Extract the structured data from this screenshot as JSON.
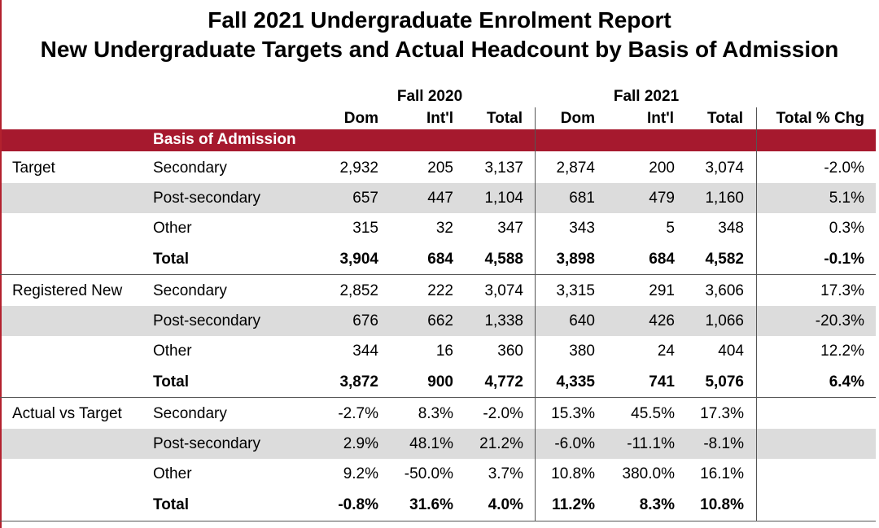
{
  "title_line1": "Fall 2021 Undergraduate Enrolment Report",
  "title_line2": "New Undergraduate Targets and Actual Headcount by Basis of Admission",
  "columns": {
    "fall2020": "Fall 2020",
    "fall2021": "Fall 2021",
    "dom": "Dom",
    "intl": "Int'l",
    "total": "Total",
    "total_pct_chg": "Total % Chg"
  },
  "basis_label": "Basis of Admission",
  "colors": {
    "band": "#a6192e",
    "shade": "#dcdcdc"
  },
  "groups": [
    {
      "label": "Target",
      "rows": [
        {
          "basis": "Secondary",
          "d20": "2,932",
          "i20": "205",
          "t20": "3,137",
          "d21": "2,874",
          "i21": "200",
          "t21": "3,074",
          "chg": "-2.0%"
        },
        {
          "basis": "Post-secondary",
          "d20": "657",
          "i20": "447",
          "t20": "1,104",
          "d21": "681",
          "i21": "479",
          "t21": "1,160",
          "chg": "5.1%"
        },
        {
          "basis": "Other",
          "d20": "315",
          "i20": "32",
          "t20": "347",
          "d21": "343",
          "i21": "5",
          "t21": "348",
          "chg": "0.3%"
        },
        {
          "basis": "Total",
          "d20": "3,904",
          "i20": "684",
          "t20": "4,588",
          "d21": "3,898",
          "i21": "684",
          "t21": "4,582",
          "chg": "-0.1%"
        }
      ]
    },
    {
      "label": "Registered New",
      "rows": [
        {
          "basis": "Secondary",
          "d20": "2,852",
          "i20": "222",
          "t20": "3,074",
          "d21": "3,315",
          "i21": "291",
          "t21": "3,606",
          "chg": "17.3%"
        },
        {
          "basis": "Post-secondary",
          "d20": "676",
          "i20": "662",
          "t20": "1,338",
          "d21": "640",
          "i21": "426",
          "t21": "1,066",
          "chg": "-20.3%"
        },
        {
          "basis": "Other",
          "d20": "344",
          "i20": "16",
          "t20": "360",
          "d21": "380",
          "i21": "24",
          "t21": "404",
          "chg": "12.2%"
        },
        {
          "basis": "Total",
          "d20": "3,872",
          "i20": "900",
          "t20": "4,772",
          "d21": "4,335",
          "i21": "741",
          "t21": "5,076",
          "chg": "6.4%"
        }
      ]
    },
    {
      "label": "Actual vs Target",
      "rows": [
        {
          "basis": "Secondary",
          "d20": "-2.7%",
          "i20": "8.3%",
          "t20": "-2.0%",
          "d21": "15.3%",
          "i21": "45.5%",
          "t21": "17.3%",
          "chg": ""
        },
        {
          "basis": "Post-secondary",
          "d20": "2.9%",
          "i20": "48.1%",
          "t20": "21.2%",
          "d21": "-6.0%",
          "i21": "-11.1%",
          "t21": "-8.1%",
          "chg": ""
        },
        {
          "basis": "Other",
          "d20": "9.2%",
          "i20": "-50.0%",
          "t20": "3.7%",
          "d21": "10.8%",
          "i21": "380.0%",
          "t21": "16.1%",
          "chg": ""
        },
        {
          "basis": "Total",
          "d20": "-0.8%",
          "i20": "31.6%",
          "t20": "4.0%",
          "d21": "11.2%",
          "i21": "8.3%",
          "t21": "10.8%",
          "chg": ""
        }
      ]
    }
  ]
}
